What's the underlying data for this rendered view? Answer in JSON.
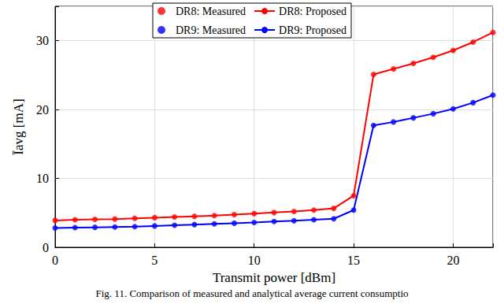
{
  "chart_data": {
    "type": "line",
    "caption": "Fig. 11. Comparison of measured and analytical average current consumptio",
    "xlabel": "Transmit power [dBm]",
    "ylabel": "Īavg [mA]",
    "x": [
      0,
      1,
      2,
      3,
      4,
      5,
      6,
      7,
      8,
      9,
      10,
      11,
      12,
      13,
      14,
      15,
      16,
      17,
      18,
      19,
      20,
      21,
      22
    ],
    "series": [
      {
        "name": "DR8: Measured",
        "type": "scatter",
        "marker": "circle",
        "color": "#ff0000",
        "values": [
          3.9,
          4.0,
          4.05,
          4.1,
          4.2,
          4.3,
          4.4,
          4.5,
          4.6,
          4.75,
          4.9,
          5.05,
          5.2,
          5.4,
          5.65,
          7.5,
          25.1,
          25.9,
          26.7,
          27.6,
          28.6,
          29.8,
          31.2
        ]
      },
      {
        "name": "DR8: Proposed",
        "type": "line",
        "line_style": "solid",
        "color": "#ff0000",
        "values": [
          3.9,
          4.0,
          4.05,
          4.1,
          4.2,
          4.3,
          4.4,
          4.5,
          4.6,
          4.75,
          4.9,
          5.05,
          5.2,
          5.4,
          5.65,
          7.5,
          25.1,
          25.9,
          26.7,
          27.6,
          28.6,
          29.8,
          31.2
        ]
      },
      {
        "name": "DR9: Measured",
        "type": "scatter",
        "marker": "circle",
        "color": "#0000ff",
        "values": [
          2.8,
          2.85,
          2.9,
          2.95,
          3.0,
          3.1,
          3.2,
          3.3,
          3.4,
          3.5,
          3.6,
          3.75,
          3.85,
          4.0,
          4.15,
          5.4,
          17.7,
          18.2,
          18.8,
          19.4,
          20.1,
          21.0,
          22.1
        ]
      },
      {
        "name": "DR9: Proposed",
        "type": "line",
        "line_style": "solid",
        "color": "#0000ff",
        "values": [
          2.8,
          2.85,
          2.9,
          2.95,
          3.0,
          3.1,
          3.2,
          3.3,
          3.4,
          3.5,
          3.6,
          3.75,
          3.85,
          4.0,
          4.15,
          5.4,
          17.7,
          18.2,
          18.8,
          19.4,
          20.1,
          21.0,
          22.1
        ]
      }
    ],
    "xlim": [
      0,
      22
    ],
    "xticks": [
      0,
      5,
      10,
      15,
      20
    ],
    "ylim": [
      0,
      35
    ],
    "yticks": [
      0,
      10,
      20,
      30
    ],
    "grid": true,
    "legend": "top"
  }
}
